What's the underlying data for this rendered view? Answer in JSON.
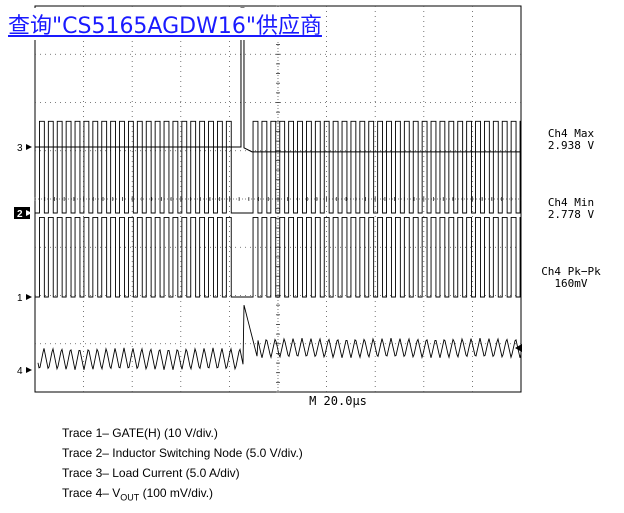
{
  "banner": {
    "text": "查询\"CS5165AGDW16\"供应商"
  },
  "chart_data": {
    "type": "line",
    "timebase": "M 20.0µs",
    "grid": true,
    "channel_markers": [
      "3",
      "2",
      "1",
      "4"
    ],
    "measurements": [
      {
        "label": "Ch4 Max",
        "value": "2.938 V"
      },
      {
        "label": "Ch4 Min",
        "value": "2.778 V"
      },
      {
        "label": "Ch4 Pk−Pk",
        "value": "160mV"
      }
    ],
    "series": [
      {
        "name": "Trace 1– GATE(H) (10 V/div.)",
        "kind": "pwm",
        "high_div": 1.65,
        "low_div": 0
      },
      {
        "name": "Trace 2– Inductor Switching Node (5.0 V/div.)",
        "kind": "pwm",
        "high_div": 1.9,
        "low_div": 0
      },
      {
        "name": "Trace 3– Load Current (5.0 A/div)",
        "kind": "step",
        "before_div": 0,
        "after_div": -0.1,
        "step_time_div": 4.3
      },
      {
        "name": "Trace 4– VOUT (100 mV/div.)",
        "kind": "ripple",
        "pk_pk_mV": 160,
        "step_time_div": 4.3
      }
    ]
  },
  "legend": {
    "lines": [
      {
        "prefix": "Trace 1– GATE(H) (10 V/div.)"
      },
      {
        "prefix": "Trace 2– Inductor Switching Node (5.0 V/div.)"
      },
      {
        "prefix": "Trace 3– Load Current (5.0 A/div)"
      },
      {
        "prefix": "Trace 4– V",
        "sub": "OUT",
        "suffix": " (100 mV/div.)"
      }
    ]
  }
}
